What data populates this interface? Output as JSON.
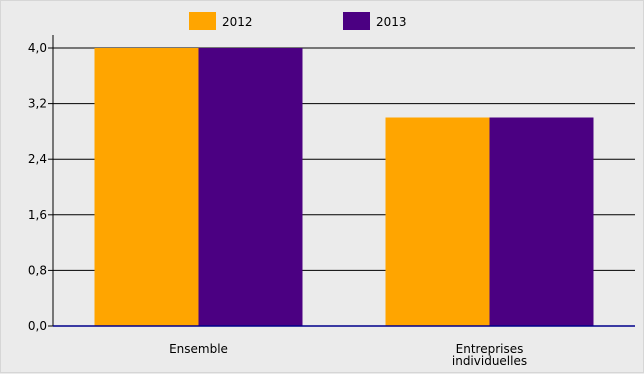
{
  "chart_data": {
    "type": "bar",
    "categories": [
      "Ensemble",
      "Entreprises individuelles"
    ],
    "category_lines": [
      [
        "Ensemble"
      ],
      [
        "Entreprises",
        "individuelles"
      ]
    ],
    "series": [
      {
        "name": "2012",
        "values": [
          4.0,
          3.0
        ],
        "color": "#ffa500"
      },
      {
        "name": "2013",
        "values": [
          4.0,
          3.0
        ],
        "color": "#4b0082"
      }
    ],
    "ylim": [
      0,
      4.0
    ],
    "yticks": [
      "0,0",
      "0,8",
      "1,6",
      "2,4",
      "3,2",
      "4,0"
    ],
    "grid": true,
    "legend": "top",
    "axis_color": "#00008b"
  }
}
